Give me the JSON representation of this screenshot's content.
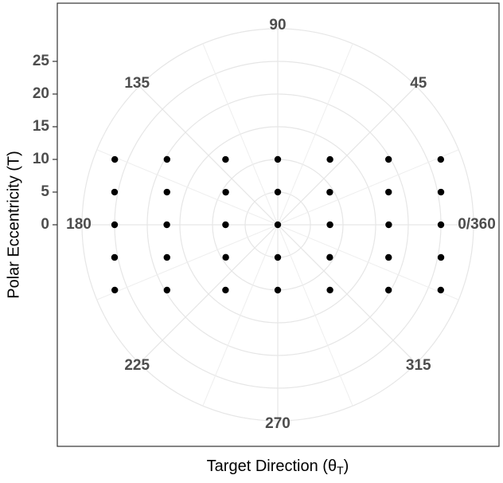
{
  "chart_data": {
    "type": "polar-scatter",
    "xlabel": {
      "text": "Target Direction (θ",
      "sub": "T",
      "close": ")"
    },
    "ylabel": "Polar Eccentricity (T)",
    "rlim": [
      0,
      30
    ],
    "yticks": [
      0,
      5,
      10,
      15,
      20,
      25
    ],
    "thetaticks": [
      {
        "value": 0,
        "label": "0/360"
      },
      45,
      90,
      135,
      180,
      225,
      270,
      315
    ],
    "grid": true,
    "series": [
      {
        "color": "#000000",
        "theta": [
          21.8,
          11.3,
          0,
          348.7,
          338.2,
          30.5,
          16.4,
          0,
          343.6,
          329.5,
          51.3,
          32.0,
          0,
          328.0,
          308.7,
          90,
          90,
          0,
          270,
          270,
          128.7,
          148.0,
          180,
          212.0,
          231.3,
          149.5,
          163.6,
          180,
          196.4,
          210.5,
          158.2,
          168.7,
          180,
          191.3,
          201.8
        ],
        "r": [
          26.9,
          25.5,
          25,
          25.5,
          26.9,
          19.7,
          17.7,
          17,
          17.7,
          19.7,
          12.8,
          9.4,
          8,
          9.4,
          12.8,
          10,
          5,
          0,
          5,
          10,
          12.8,
          9.4,
          8,
          9.4,
          12.8,
          19.7,
          17.7,
          17,
          17.7,
          19.7,
          26.9,
          25.5,
          25,
          25.5,
          26.9
        ]
      }
    ]
  }
}
